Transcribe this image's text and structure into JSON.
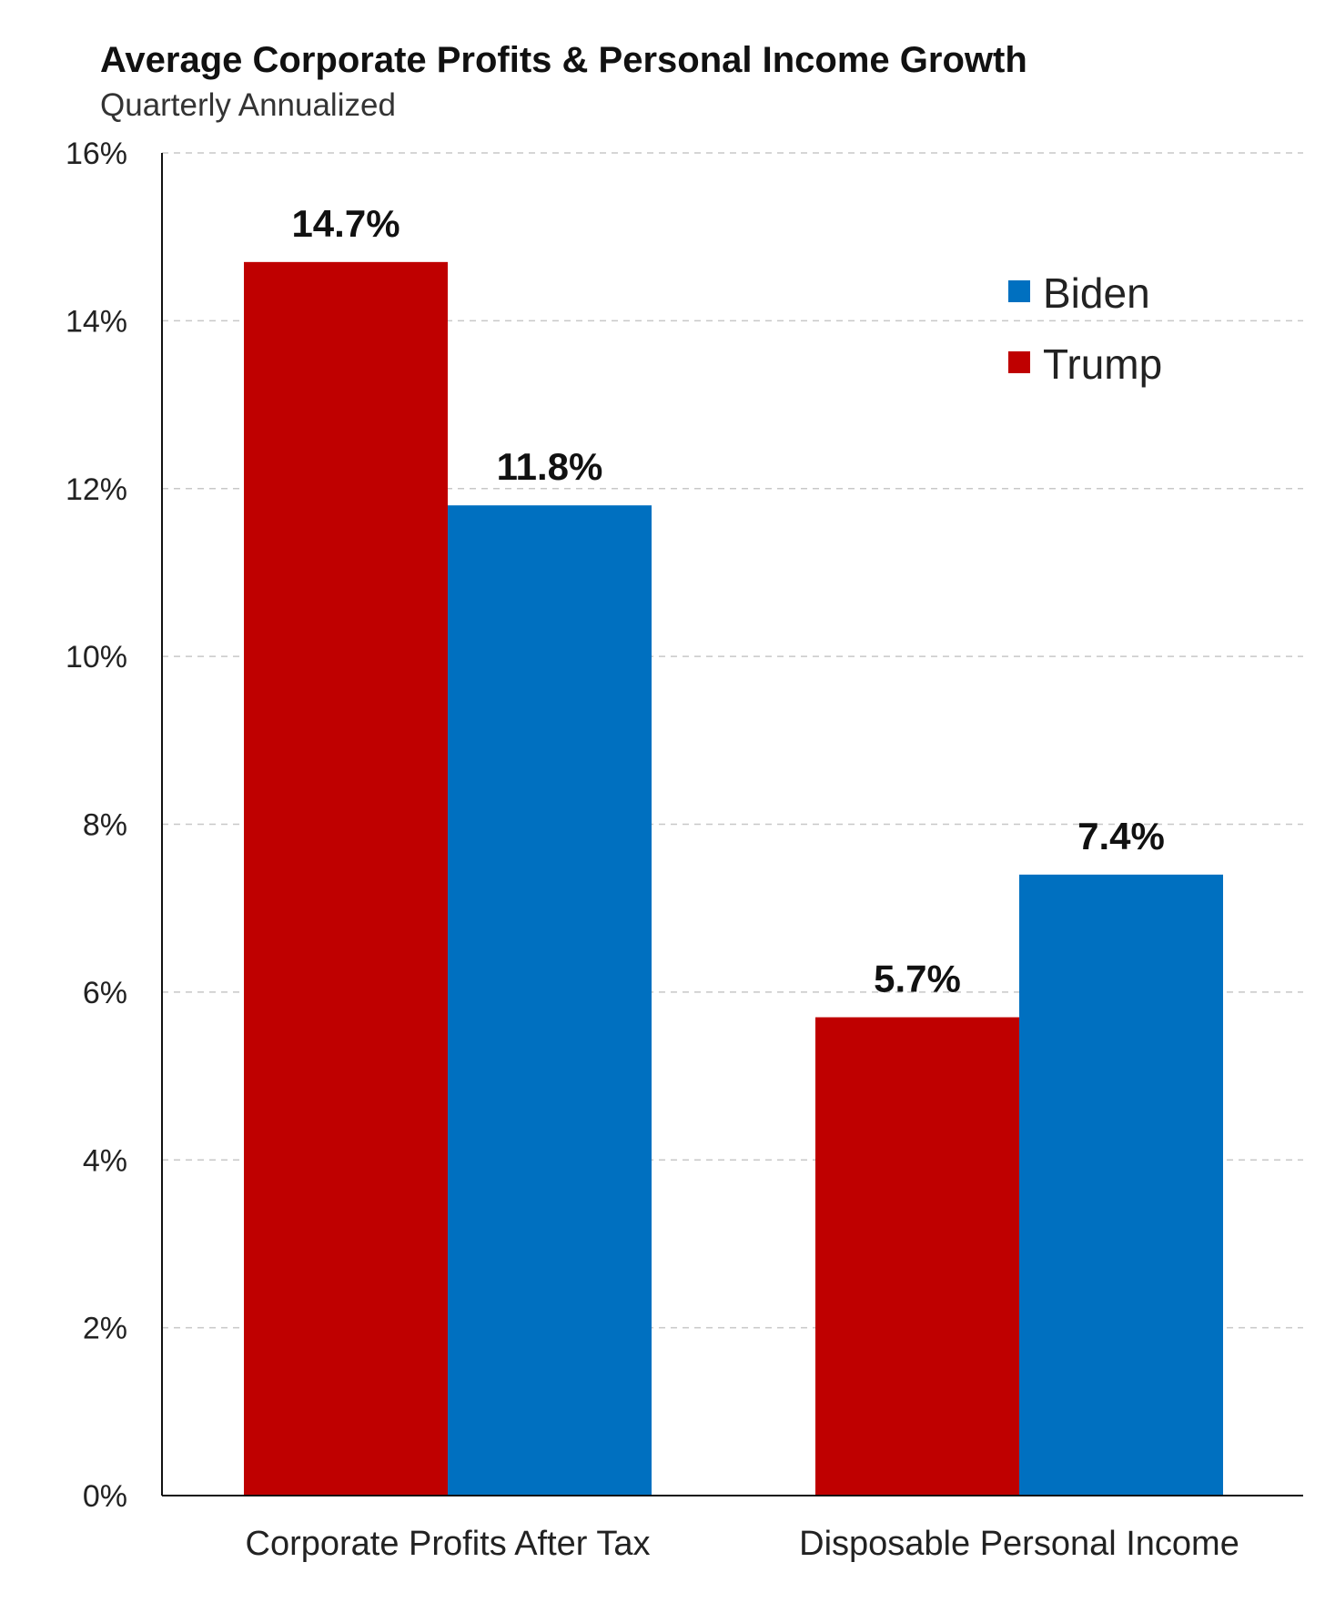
{
  "chart_data": {
    "type": "bar",
    "title": "Average Corporate Profits & Personal Income Growth",
    "subtitle": "Quarterly Annualized",
    "categories": [
      "Corporate Profits After Tax",
      "Disposable Personal Income"
    ],
    "series": [
      {
        "name": "Trump",
        "color": "#bf0000",
        "values": [
          14.7,
          5.7
        ],
        "labels": [
          "14.7%",
          "5.7%"
        ]
      },
      {
        "name": "Biden",
        "color": "#0070c0",
        "values": [
          11.8,
          7.4
        ],
        "labels": [
          "11.8%",
          "7.4%"
        ]
      }
    ],
    "legend_order": [
      "Biden",
      "Trump"
    ],
    "ylim": [
      0,
      16
    ],
    "yticks": [
      0,
      2,
      4,
      6,
      8,
      10,
      12,
      14,
      16
    ],
    "ytick_labels": [
      "0%",
      "2%",
      "4%",
      "6%",
      "8%",
      "10%",
      "12%",
      "14%",
      "16%"
    ],
    "grid": true,
    "legend_position": "top-right"
  }
}
